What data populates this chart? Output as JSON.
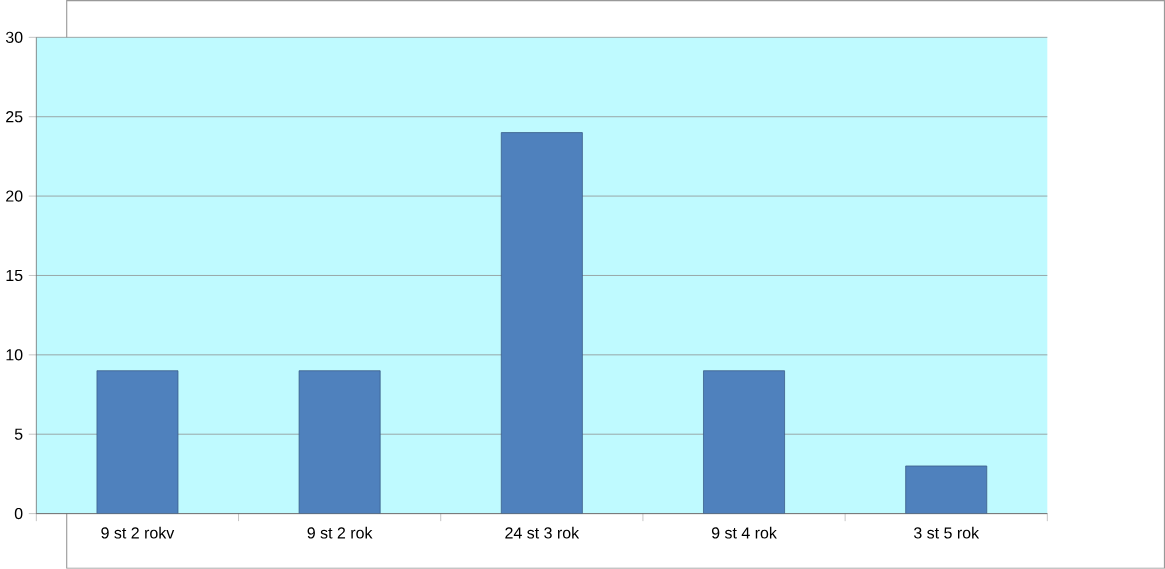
{
  "chart_data": {
    "type": "bar",
    "categories": [
      "9 st 2 rokv",
      "9 st 2 rok",
      "24 st 3 rok",
      "9 st 4 rok",
      "3 st 5 rok"
    ],
    "values": [
      9,
      9,
      24,
      9,
      3
    ],
    "color": "#4f81bd",
    "ylim": [
      0,
      30
    ],
    "yticks": [
      0,
      5,
      10,
      15,
      20,
      25,
      30
    ],
    "grid": "y"
  }
}
